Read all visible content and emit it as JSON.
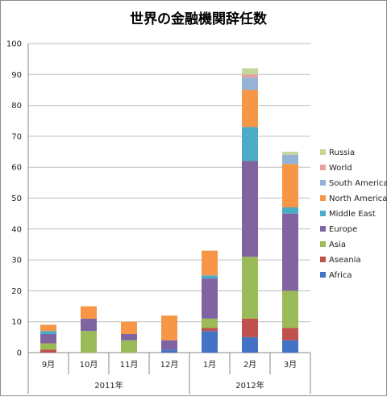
{
  "chart_data": {
    "type": "bar",
    "stacked": true,
    "title": "世界の金融機関辞任数",
    "categories": [
      "9月",
      "10月",
      "11月",
      "12月",
      "1月",
      "2月",
      "3月"
    ],
    "year_groups": [
      {
        "label": "2011年",
        "categories": [
          "9月",
          "10月",
          "11月",
          "12月"
        ]
      },
      {
        "label": "2012年",
        "categories": [
          "1月",
          "2月",
          "3月"
        ]
      }
    ],
    "ylim": [
      0,
      100
    ],
    "yticks": [
      0,
      10,
      20,
      30,
      40,
      50,
      60,
      70,
      80,
      90,
      100
    ],
    "grid": true,
    "legend_position": "right",
    "series": [
      {
        "name": "Africa",
        "color": "#4472c4",
        "values": [
          0,
          0,
          0,
          1,
          7,
          5,
          4
        ]
      },
      {
        "name": "Aseania",
        "color": "#c0504d",
        "values": [
          1,
          0,
          0,
          0,
          1,
          6,
          4
        ]
      },
      {
        "name": "Asia",
        "color": "#9bbb59",
        "values": [
          2,
          7,
          4,
          0,
          3,
          20,
          12
        ]
      },
      {
        "name": "Europe",
        "color": "#8064a2",
        "values": [
          3,
          4,
          2,
          3,
          13,
          31,
          25
        ]
      },
      {
        "name": "Middle East",
        "color": "#4bacc6",
        "values": [
          1,
          0,
          0,
          0,
          1,
          11,
          2
        ]
      },
      {
        "name": "North America",
        "color": "#f79646",
        "values": [
          2,
          4,
          4,
          8,
          8,
          12,
          14
        ]
      },
      {
        "name": "South America",
        "color": "#95b3d7",
        "values": [
          0,
          0,
          0,
          0,
          0,
          4,
          3
        ]
      },
      {
        "name": "World",
        "color": "#e6a0a0",
        "values": [
          0,
          0,
          0,
          0,
          0,
          1,
          0
        ]
      },
      {
        "name": "Russia",
        "color": "#c3d69b",
        "values": [
          0,
          0,
          0,
          0,
          0,
          2,
          1
        ]
      }
    ]
  }
}
